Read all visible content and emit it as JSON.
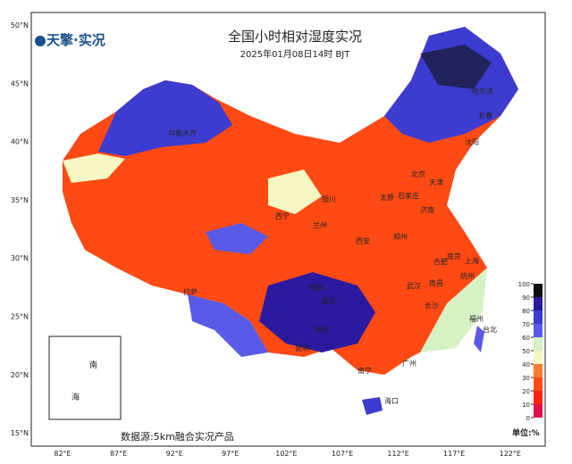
{
  "map": {
    "logo": "天擎·实况",
    "title": "全国小时相对湿度实况",
    "subtitle": "2025年01月08日14时 BJT",
    "lat_labels": [
      "50°N",
      "45°N",
      "40°N",
      "35°N",
      "30°N",
      "25°N",
      "20°N",
      "15°N"
    ],
    "lon_labels": [
      "82°E",
      "87°E",
      "92°E",
      "97°E",
      "102°E",
      "107°E",
      "112°E",
      "117°E",
      "122°E"
    ],
    "cities": [
      "乌鲁木齐",
      "哈尔滨",
      "长春",
      "沈阳",
      "北京",
      "天津",
      "银川",
      "太原",
      "石家庄",
      "济南",
      "兰州",
      "西宁",
      "西安",
      "郑州",
      "南京",
      "上海",
      "合肥",
      "杭州",
      "武汉",
      "成都",
      "拉萨",
      "重庆",
      "长沙",
      "南昌",
      "贵阳",
      "福州",
      "台北",
      "昆明",
      "南宁",
      "广州",
      "海口"
    ],
    "inset_labels": [
      "南",
      "海"
    ],
    "source": "数据源:5km融合实况产品",
    "unit": "单位:%",
    "colorbar": {
      "ticks": [
        0,
        10,
        20,
        30,
        40,
        50,
        60,
        70,
        80,
        90,
        100
      ],
      "colors": [
        "#e0104a",
        "#ff2010",
        "#ff4a14",
        "#ff7a30",
        "#f6f7c2",
        "#d6f2c4",
        "#5a5ae8",
        "#3c3cd0",
        "#2a1aa0",
        "#101010"
      ]
    }
  }
}
